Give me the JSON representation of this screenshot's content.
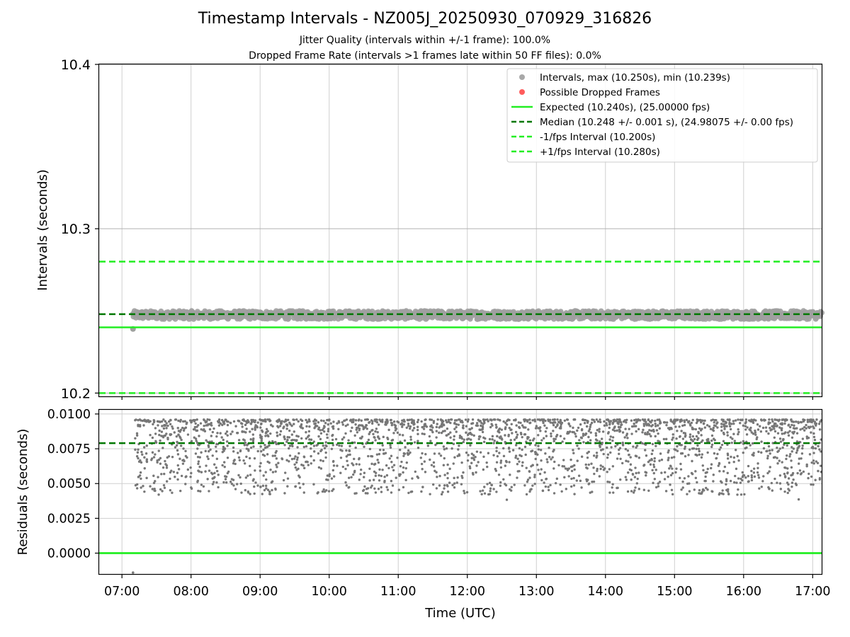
{
  "figure": {
    "title": "Timestamp Intervals - NZ005J_20250930_070929_316826",
    "subtitle_jitter": "Jitter Quality (intervals within +/-1 frame): 100.0%",
    "subtitle_dropped": "Dropped Frame Rate (intervals >1 frames late within 50 FF files): 0.0%"
  },
  "chart_data": [
    {
      "type": "scatter",
      "name": "intervals-panel",
      "ylabel": "Intervals (seconds)",
      "xlabel": "",
      "ylim": [
        10.198,
        10.4
      ],
      "xlim_hours": [
        6.67,
        17.13
      ],
      "y_ticks": [
        10.2,
        10.3,
        10.4
      ],
      "y_tick_labels": [
        "10.2",
        "10.3",
        "10.4"
      ],
      "grid": true,
      "series": [
        {
          "name": "Intervals",
          "kind": "scatter",
          "x_range_hours": [
            7.16,
            17.13
          ],
          "y_band": [
            10.245,
            10.25
          ],
          "y_min": 10.239,
          "y_max": 10.25,
          "color": "#a0a0a0"
        },
        {
          "name": "Possible Dropped Frames",
          "kind": "scatter",
          "count": 0,
          "color": "#ff5050"
        },
        {
          "name": "Expected",
          "kind": "hline",
          "y": 10.24,
          "color": "#22ee22"
        },
        {
          "name": "Median",
          "kind": "hline",
          "y": 10.248,
          "color": "#007700"
        },
        {
          "name": "-1/fps Interval",
          "kind": "hline",
          "y": 10.2,
          "color": "#22ee22"
        },
        {
          "name": "+1/fps Interval",
          "kind": "hline",
          "y": 10.28,
          "color": "#22ee22"
        }
      ],
      "legend": {
        "position": "top-right",
        "entries": [
          {
            "label": "Intervals, max (10.250s), min (10.239s)",
            "marker": "dot",
            "color": "#a8a8a8"
          },
          {
            "label": "Possible Dropped Frames",
            "marker": "dot",
            "color": "#ff5c5c"
          },
          {
            "label": "Expected (10.240s), (25.00000 fps)",
            "marker": "solid",
            "color": "#22ee22"
          },
          {
            "label": "Median (10.248 +/- 0.001 s), (24.98075 +/- 0.00 fps)",
            "marker": "dashed",
            "color": "#007700"
          },
          {
            "label": "-1/fps Interval (10.200s)",
            "marker": "dashed",
            "color": "#22ee22"
          },
          {
            "label": "+1/fps Interval (10.280s)",
            "marker": "dashed",
            "color": "#22ee22"
          }
        ]
      }
    },
    {
      "type": "scatter",
      "name": "residuals-panel",
      "ylabel": "Residuals (seconds)",
      "xlabel": "Time (UTC)",
      "ylim": [
        -0.0015,
        0.0103
      ],
      "xlim_hours": [
        6.67,
        17.13
      ],
      "y_ticks": [
        0.0,
        0.0025,
        0.005,
        0.0075,
        0.01
      ],
      "y_tick_labels": [
        "0.0000",
        "0.0025",
        "0.0050",
        "0.0075",
        "0.0100"
      ],
      "x_ticks_hours": [
        7,
        8,
        9,
        10,
        11,
        12,
        13,
        14,
        15,
        16,
        17
      ],
      "x_tick_labels": [
        "07:00",
        "08:00",
        "09:00",
        "10:00",
        "11:00",
        "12:00",
        "13:00",
        "14:00",
        "15:00",
        "16:00",
        "17:00"
      ],
      "grid": true,
      "series": [
        {
          "name": "Residuals",
          "kind": "scatter",
          "x_range_hours": [
            7.16,
            17.13
          ],
          "y_range": [
            0.0037,
            0.0096
          ],
          "outlier": {
            "x": 7.16,
            "y": -0.0014
          },
          "color": "#777777"
        },
        {
          "name": "Median residual",
          "kind": "hline",
          "y": 0.0079,
          "color": "#007700"
        },
        {
          "name": "Zero",
          "kind": "hline",
          "y": 0.0,
          "color": "#22ee22"
        }
      ]
    }
  ]
}
